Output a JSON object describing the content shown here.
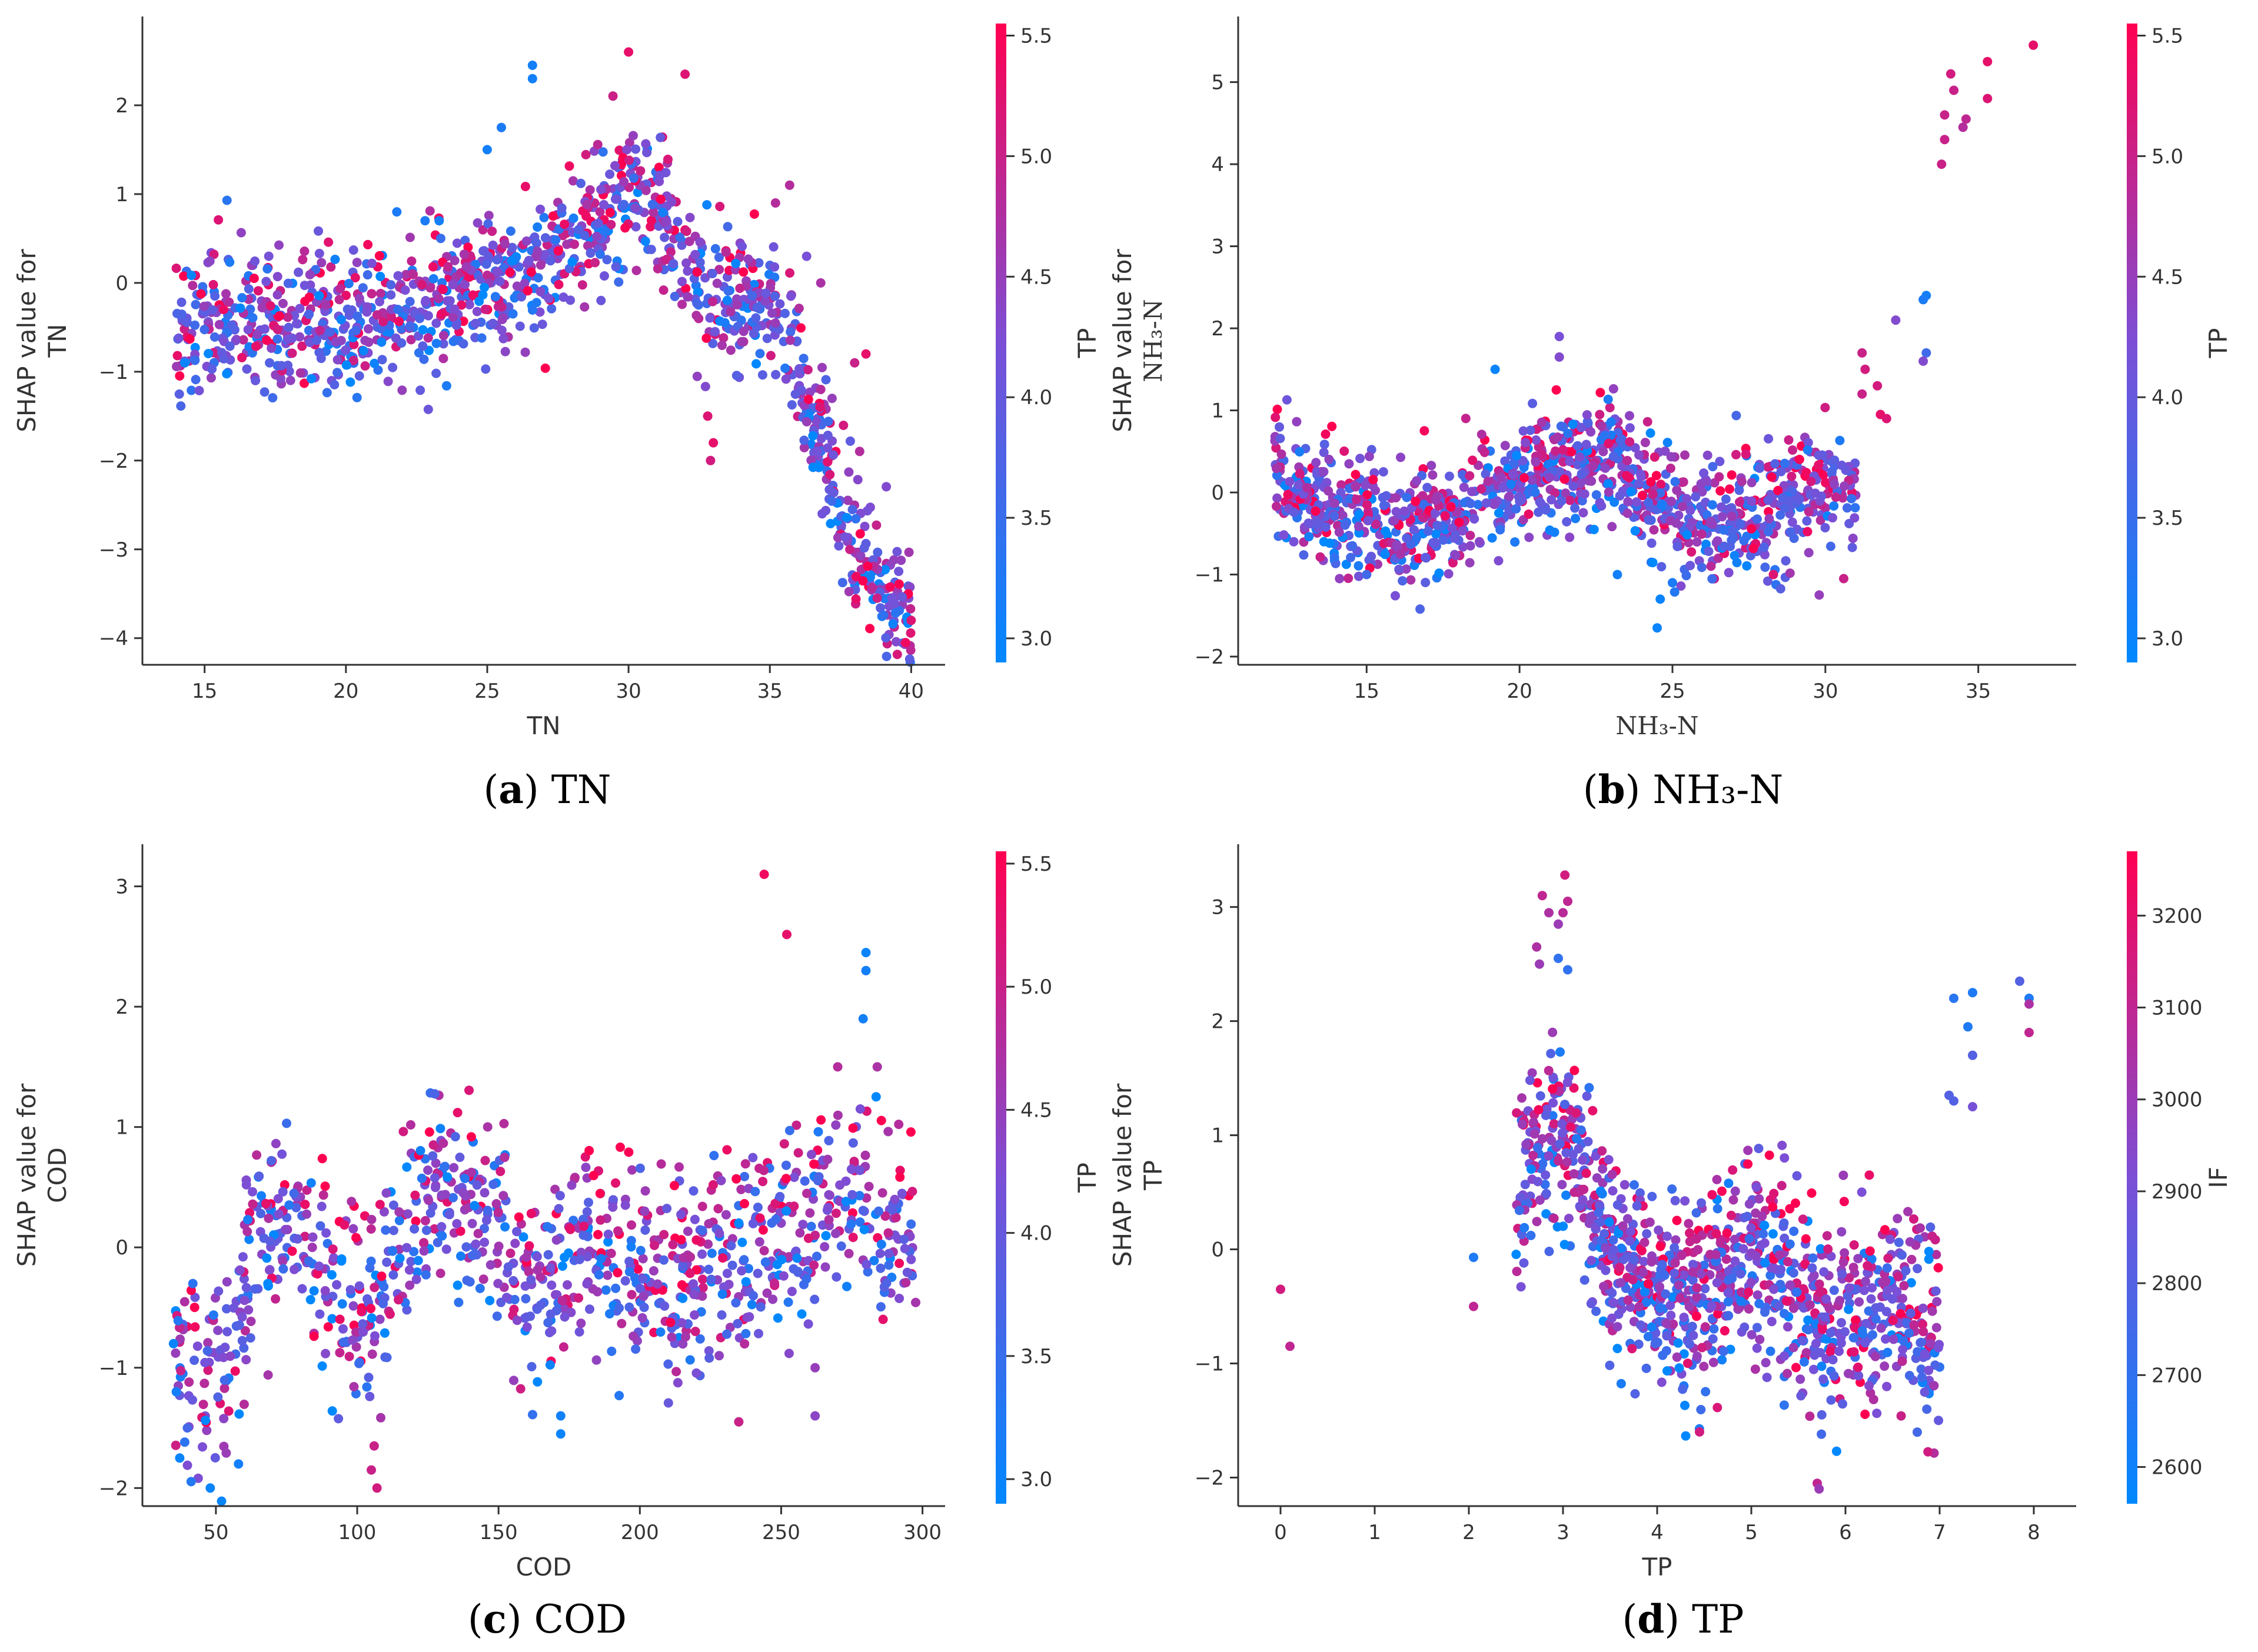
{
  "colors": {
    "low": "#0088ff",
    "mid": "#7b4fd6",
    "high": "#ff0051",
    "axis": "#333333"
  },
  "chart_data": [
    {
      "id": "a",
      "type": "scatter",
      "caption": {
        "letter": "a",
        "open": "(",
        "close": ")",
        "text": " TN"
      },
      "title": "",
      "xlabel": "TN",
      "ylabel_line1": "SHAP value for",
      "ylabel_line2": "TN",
      "xlim": [
        12.8,
        41.2
      ],
      "ylim": [
        -4.3,
        3.0
      ],
      "xticks": [
        15,
        20,
        25,
        30,
        35,
        40
      ],
      "yticks": [
        -4,
        -3,
        -2,
        -1,
        0,
        1,
        2
      ],
      "colorbar": {
        "label": "TP",
        "range": [
          2.9,
          5.55
        ],
        "ticks": [
          3.0,
          3.5,
          4.0,
          4.5,
          5.0,
          5.5
        ]
      },
      "trend": [
        [
          14,
          -0.6
        ],
        [
          16,
          -0.4
        ],
        [
          18,
          -0.4
        ],
        [
          20,
          -0.5
        ],
        [
          22,
          -0.3
        ],
        [
          25,
          0.0
        ],
        [
          27,
          0.2
        ],
        [
          29,
          0.7
        ],
        [
          30,
          1.1
        ],
        [
          31,
          0.8
        ],
        [
          32,
          0.3
        ],
        [
          33,
          -0.2
        ],
        [
          34,
          -0.2
        ],
        [
          35,
          -0.2
        ],
        [
          36,
          -1.0
        ],
        [
          37,
          -2.0
        ],
        [
          38,
          -3.0
        ],
        [
          39,
          -3.4
        ],
        [
          40,
          -3.7
        ]
      ],
      "spread": 0.38,
      "n_points": 1300,
      "extra_points": [
        [
          26.6,
          2.45,
          3.1
        ],
        [
          26.6,
          2.3,
          3.1
        ],
        [
          30.0,
          2.6,
          5.3
        ],
        [
          32.0,
          2.35,
          5.2
        ],
        [
          25.0,
          1.5,
          3.1
        ],
        [
          25.5,
          1.75,
          3.2
        ],
        [
          32.8,
          -1.5,
          5.2
        ],
        [
          32.9,
          -2.0,
          5.1
        ],
        [
          33.0,
          -1.8,
          5.3
        ],
        [
          36.8,
          -1.2,
          4.8
        ],
        [
          37.2,
          -1.3,
          4.5
        ],
        [
          38.0,
          -0.9,
          5.0
        ],
        [
          38.4,
          -0.8,
          5.3
        ],
        [
          39.8,
          -4.05,
          5.4
        ],
        [
          40.0,
          -3.8,
          5.2
        ],
        [
          35.2,
          0.9,
          4.8
        ],
        [
          35.7,
          1.1,
          4.8
        ],
        [
          36.3,
          0.3,
          4.2
        ],
        [
          36.8,
          0.0,
          4.7
        ],
        [
          16.8,
          -1.1,
          4.0
        ],
        [
          14.3,
          -0.9,
          3.0
        ],
        [
          17.3,
          -0.9,
          3.8
        ],
        [
          21.8,
          0.8,
          3.2
        ],
        [
          22.8,
          0.7,
          3.2
        ],
        [
          23.3,
          0.7,
          3.1
        ]
      ]
    },
    {
      "id": "b",
      "type": "scatter",
      "caption": {
        "letter": "b",
        "open": "(",
        "close": ")",
        "text": " NH₃-N"
      },
      "title": "",
      "xlabel": "NH₃-N",
      "ylabel_line1": "SHAP value for",
      "ylabel_line2": "NH₃-N",
      "xlim": [
        10.8,
        38.2
      ],
      "ylim": [
        -2.1,
        5.8
      ],
      "xticks": [
        15,
        20,
        25,
        30,
        35
      ],
      "yticks": [
        -2,
        -1,
        0,
        1,
        2,
        3,
        4,
        5
      ],
      "colorbar": {
        "label": "TP",
        "range": [
          2.9,
          5.55
        ],
        "ticks": [
          3.0,
          3.5,
          4.0,
          4.5,
          5.0,
          5.5
        ]
      },
      "trend": [
        [
          12,
          0.1
        ],
        [
          14,
          -0.2
        ],
        [
          16,
          -0.4
        ],
        [
          18,
          -0.3
        ],
        [
          19,
          0.0
        ],
        [
          20,
          0.2
        ],
        [
          21,
          0.2
        ],
        [
          22,
          0.3
        ],
        [
          23,
          0.5
        ],
        [
          24,
          0.0
        ],
        [
          25,
          -0.3
        ],
        [
          26,
          -0.3
        ],
        [
          27,
          -0.3
        ],
        [
          28,
          -0.2
        ],
        [
          29,
          0.0
        ],
        [
          30,
          0.1
        ],
        [
          31,
          -0.2
        ]
      ],
      "spread": 0.36,
      "n_points": 1200,
      "extra_points": [
        [
          36.8,
          5.45,
          5.3
        ],
        [
          35.3,
          5.25,
          5.3
        ],
        [
          35.3,
          4.8,
          5.2
        ],
        [
          34.1,
          5.1,
          5.1
        ],
        [
          34.2,
          4.9,
          5.0
        ],
        [
          34.6,
          4.55,
          4.9
        ],
        [
          34.5,
          4.45,
          4.8
        ],
        [
          33.9,
          4.6,
          5.0
        ],
        [
          33.9,
          4.3,
          5.0
        ],
        [
          33.8,
          4.0,
          5.0
        ],
        [
          33.3,
          2.4,
          3.1
        ],
        [
          33.2,
          2.35,
          3.2
        ],
        [
          33.3,
          1.7,
          3.6
        ],
        [
          33.2,
          1.6,
          4.3
        ],
        [
          32.3,
          2.1,
          4.3
        ],
        [
          31.7,
          1.3,
          5.1
        ],
        [
          31.8,
          0.95,
          5.3
        ],
        [
          32.0,
          0.9,
          5.2
        ],
        [
          31.3,
          1.5,
          5.1
        ],
        [
          31.2,
          1.7,
          5.0
        ],
        [
          31.2,
          1.2,
          5.0
        ],
        [
          21.3,
          1.9,
          4.2
        ],
        [
          21.3,
          1.65,
          4.3
        ],
        [
          19.2,
          1.5,
          3.0
        ],
        [
          23.2,
          -1.0,
          3.1
        ],
        [
          24.5,
          -1.65,
          3.0
        ],
        [
          24.6,
          -1.3,
          3.0
        ],
        [
          25.0,
          -1.1,
          3.2
        ],
        [
          28.3,
          -1.0,
          5.2
        ],
        [
          30.6,
          -1.05,
          5.0
        ],
        [
          29.8,
          -1.25,
          4.5
        ],
        [
          15.0,
          -1.0,
          3.6
        ]
      ]
    },
    {
      "id": "c",
      "type": "scatter",
      "caption": {
        "letter": "c",
        "open": "(",
        "close": ")",
        "text": " COD"
      },
      "title": "",
      "xlabel": "COD",
      "ylabel_line1": "SHAP value for",
      "ylabel_line2": "COD",
      "xlim": [
        24,
        308
      ],
      "ylim": [
        -2.15,
        3.35
      ],
      "xticks": [
        50,
        100,
        150,
        200,
        250,
        300
      ],
      "yticks": [
        -2,
        -1,
        0,
        1,
        2,
        3
      ],
      "colorbar": {
        "label": "TP",
        "range": [
          2.9,
          5.55
        ],
        "ticks": [
          3.0,
          3.5,
          4.0,
          4.5,
          5.0,
          5.5
        ]
      },
      "trend": [
        [
          35,
          -1.0
        ],
        [
          45,
          -1.1
        ],
        [
          55,
          -1.0
        ],
        [
          65,
          0.1
        ],
        [
          80,
          0.1
        ],
        [
          90,
          -0.4
        ],
        [
          100,
          -0.6
        ],
        [
          110,
          -0.3
        ],
        [
          120,
          0.2
        ],
        [
          128,
          0.6
        ],
        [
          135,
          0.5
        ],
        [
          145,
          0.3
        ],
        [
          155,
          -0.1
        ],
        [
          165,
          -0.4
        ],
        [
          175,
          -0.2
        ],
        [
          185,
          0.0
        ],
        [
          195,
          0.0
        ],
        [
          210,
          -0.2
        ],
        [
          225,
          -0.2
        ],
        [
          240,
          0.0
        ],
        [
          260,
          0.2
        ],
        [
          280,
          0.4
        ],
        [
          298,
          0.0
        ]
      ],
      "spread": 0.42,
      "n_points": 1100,
      "extra_points": [
        [
          244,
          3.1,
          5.4
        ],
        [
          252,
          2.6,
          5.3
        ],
        [
          280,
          2.45,
          3.0
        ],
        [
          280,
          2.3,
          3.1
        ],
        [
          279,
          1.9,
          3.1
        ],
        [
          270,
          1.5,
          4.8
        ],
        [
          284,
          1.5,
          4.7
        ],
        [
          278,
          1.15,
          4.2
        ],
        [
          48,
          -2.0,
          3.0
        ],
        [
          58,
          -1.8,
          3.1
        ],
        [
          35,
          -0.8,
          3.0
        ],
        [
          36,
          -1.2,
          3.1
        ],
        [
          107,
          -2.0,
          5.1
        ],
        [
          105,
          -1.85,
          5.0
        ],
        [
          106,
          -1.65,
          5.0
        ],
        [
          172,
          -1.55,
          3.0
        ],
        [
          172,
          -1.4,
          3.1
        ],
        [
          235,
          -1.45,
          5.0
        ],
        [
          262,
          -1.4,
          4.4
        ],
        [
          262,
          -1.0,
          4.5
        ]
      ]
    },
    {
      "id": "d",
      "type": "scatter",
      "caption": {
        "letter": "d",
        "open": "(",
        "close": ")",
        "text": " TP"
      },
      "title": "",
      "xlabel": "TP",
      "ylabel_line1": "SHAP value for",
      "ylabel_line2": "TP",
      "xlim": [
        -0.45,
        8.45
      ],
      "ylim": [
        -2.25,
        3.55
      ],
      "xticks": [
        0,
        1,
        2,
        3,
        4,
        5,
        6,
        7,
        8
      ],
      "yticks": [
        -2,
        -1,
        0,
        1,
        2,
        3
      ],
      "colorbar": {
        "label": "IF",
        "range": [
          2560,
          3270
        ],
        "ticks": [
          2600,
          2700,
          2800,
          2900,
          3000,
          3100,
          3200
        ]
      },
      "trend": [
        [
          2.5,
          0.3
        ],
        [
          2.8,
          0.9
        ],
        [
          3.0,
          1.1
        ],
        [
          3.2,
          0.6
        ],
        [
          3.5,
          0.0
        ],
        [
          3.8,
          -0.3
        ],
        [
          4.2,
          -0.4
        ],
        [
          4.5,
          -0.5
        ],
        [
          4.8,
          -0.1
        ],
        [
          5.0,
          0.0
        ],
        [
          5.3,
          -0.2
        ],
        [
          5.6,
          -0.5
        ],
        [
          6.0,
          -0.6
        ],
        [
          6.5,
          -0.4
        ],
        [
          7.0,
          -0.8
        ]
      ],
      "spread": 0.42,
      "n_points": 1100,
      "extra_points": [
        [
          0.0,
          -0.35,
          3150
        ],
        [
          0.1,
          -0.85,
          3100
        ],
        [
          2.05,
          -0.5,
          3100
        ],
        [
          2.05,
          -0.07,
          2650
        ],
        [
          2.78,
          3.1,
          3100
        ],
        [
          2.85,
          2.95,
          3050
        ],
        [
          3.02,
          3.28,
          3150
        ],
        [
          3.05,
          3.05,
          3100
        ],
        [
          2.95,
          2.85,
          3000
        ],
        [
          3.0,
          2.95,
          3080
        ],
        [
          2.95,
          2.55,
          2700
        ],
        [
          3.05,
          2.45,
          2700
        ],
        [
          2.75,
          2.5,
          3000
        ],
        [
          2.72,
          2.65,
          3050
        ],
        [
          7.15,
          2.2,
          2680
        ],
        [
          7.35,
          2.25,
          2650
        ],
        [
          7.3,
          1.95,
          2650
        ],
        [
          7.85,
          2.35,
          2800
        ],
        [
          7.95,
          2.2,
          2650
        ],
        [
          7.95,
          1.9,
          3100
        ],
        [
          7.95,
          2.15,
          3050
        ],
        [
          7.35,
          1.25,
          2900
        ],
        [
          7.1,
          1.35,
          2800
        ],
        [
          7.15,
          1.3,
          2800
        ],
        [
          7.35,
          1.7,
          2800
        ],
        [
          4.45,
          -1.6,
          3150
        ],
        [
          5.7,
          -2.05,
          3100
        ],
        [
          5.72,
          -2.1,
          3000
        ],
        [
          4.1,
          -0.65,
          3000
        ],
        [
          6.6,
          -0.05,
          2800
        ]
      ]
    }
  ]
}
